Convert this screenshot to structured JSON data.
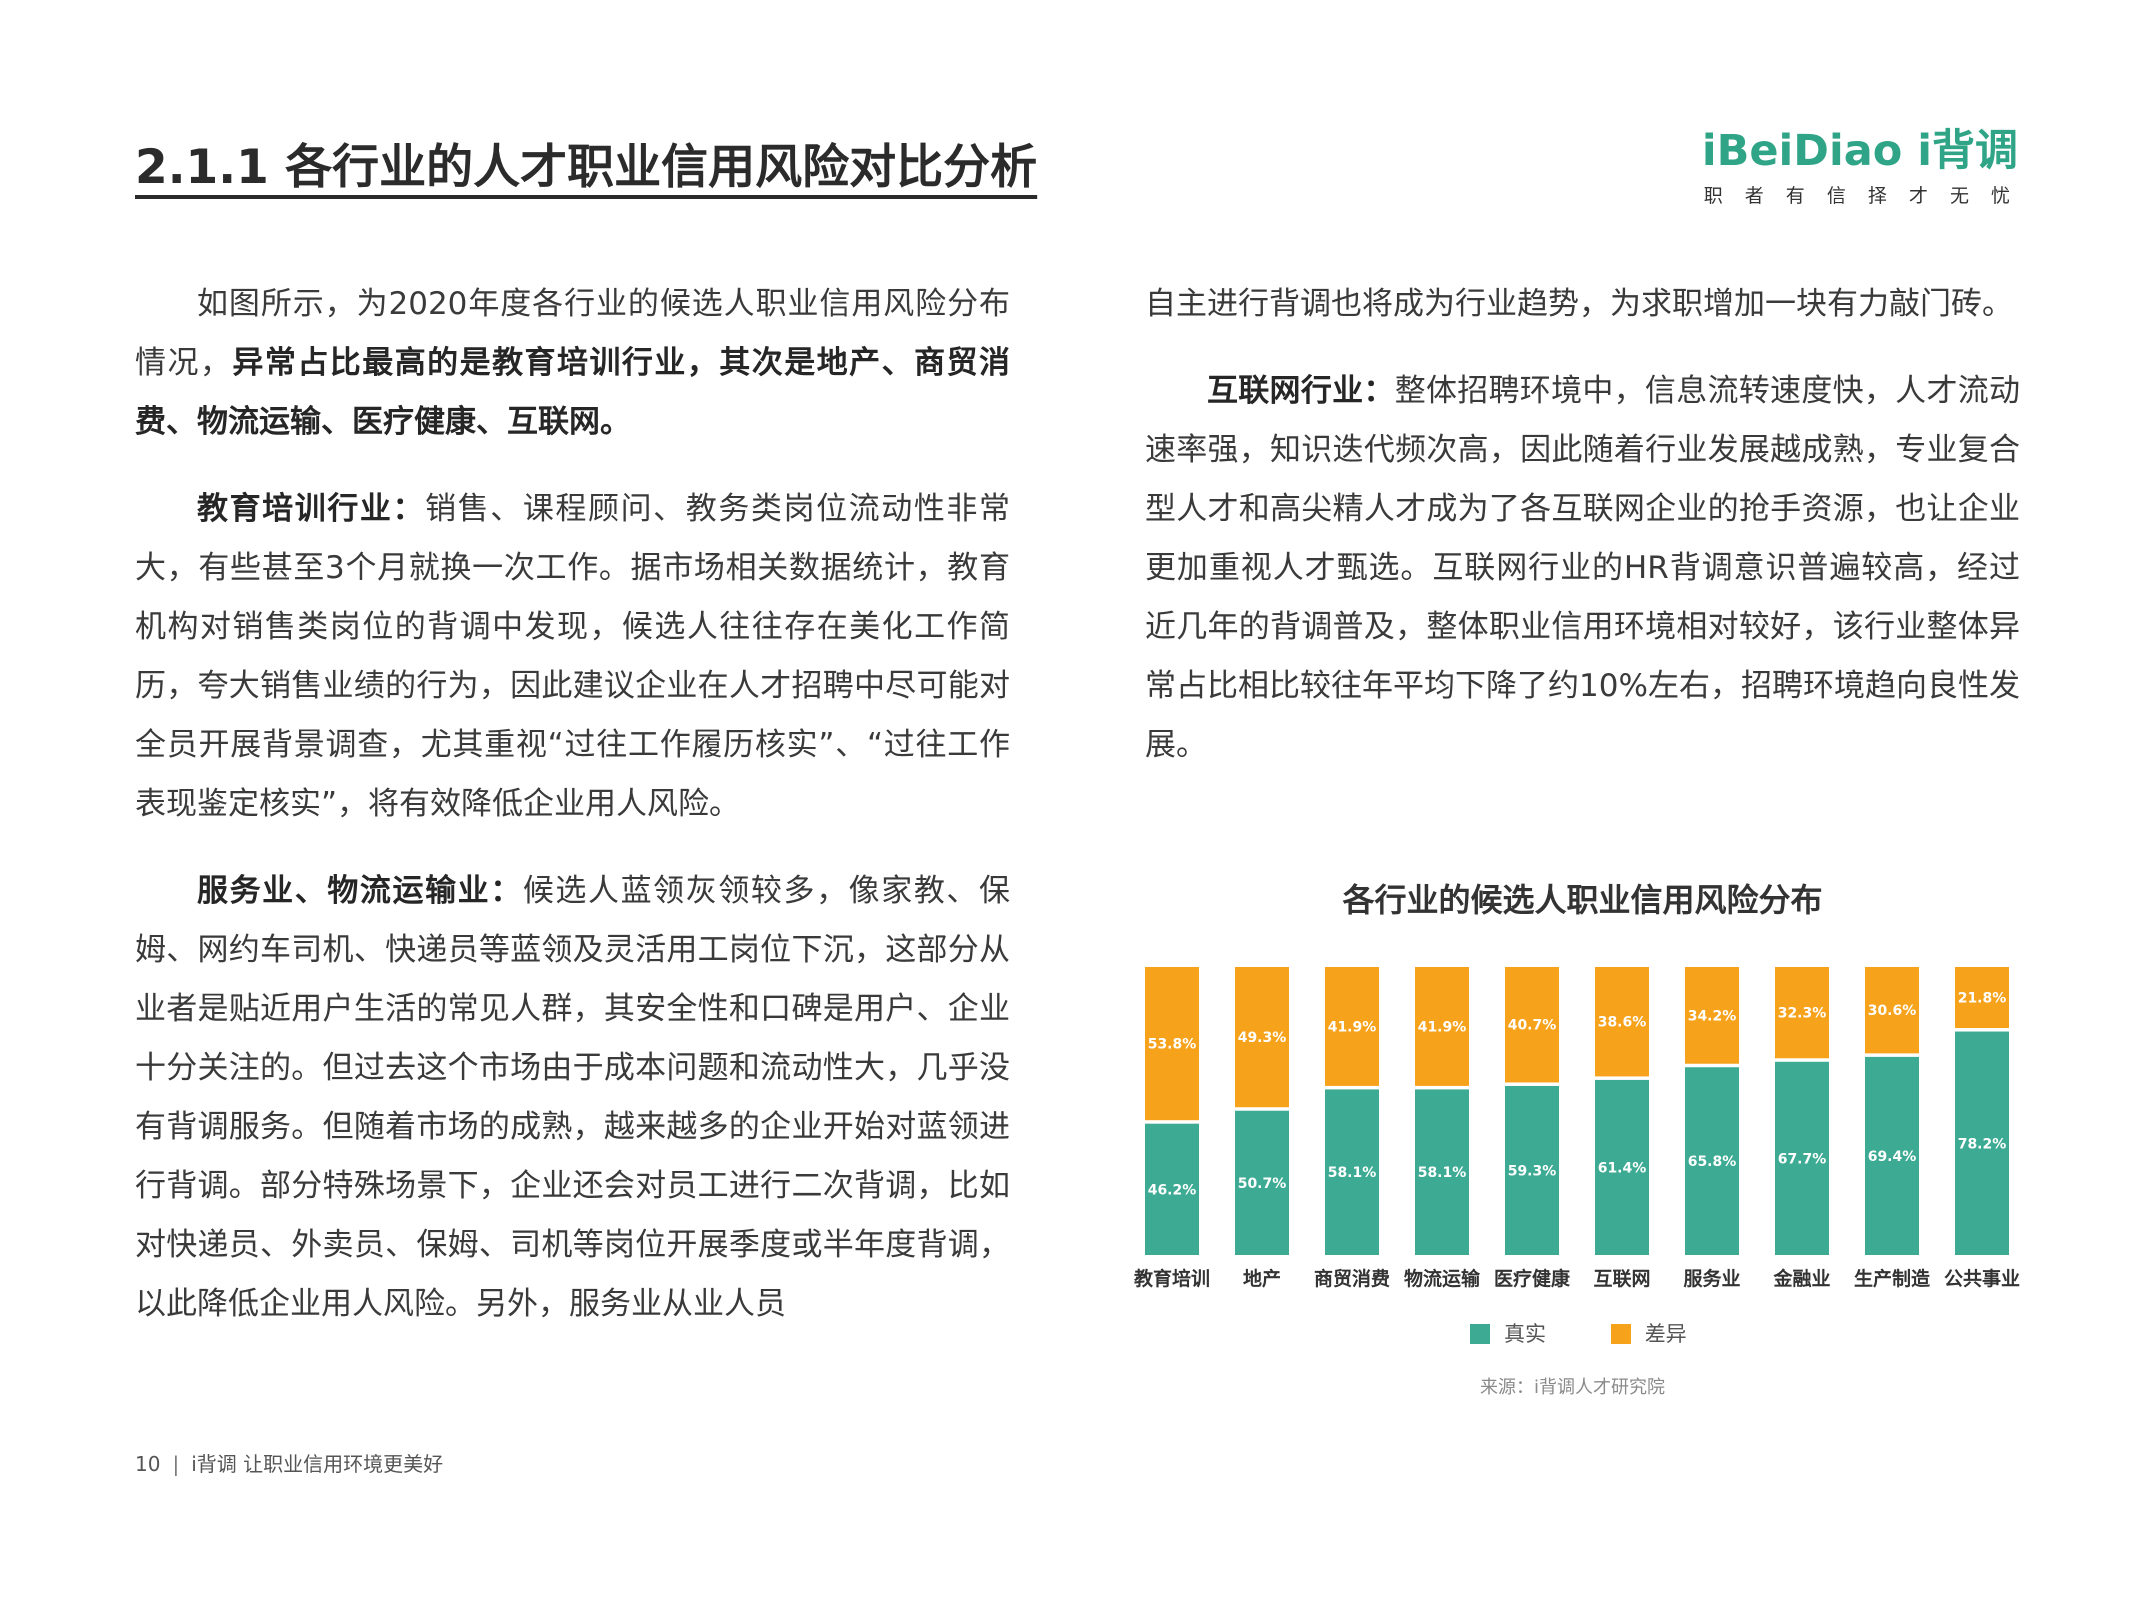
{
  "heading": "2.1.1 各行业的人才职业信用风险对比分析",
  "logo": {
    "brand": "iBeiDiao i背调",
    "tagline": "职 者 有 信  择 才 无 忧"
  },
  "left_column": {
    "p1_text": "如图所示，为2020年度各行业的候选人职业信用风险分布情况，",
    "p1_bold": "异常占比最高的是教育培训行业，其次是地产、商贸消费、物流运输、医疗健康、互联网。",
    "p2_bold": "教育培训行业：",
    "p2_text": "销售、课程顾问、教务类岗位流动性非常大，有些甚至3个月就换一次工作。据市场相关数据统计，教育机构对销售类岗位的背调中发现，候选人往往存在美化工作简历，夸大销售业绩的行为，因此建议企业在人才招聘中尽可能对全员开展背景调查，尤其重视“过往工作履历核实”、“过往工作表现鉴定核实”，将有效降低企业用人风险。",
    "p3_bold": "服务业、物流运输业：",
    "p3_text": "候选人蓝领灰领较多，像家教、保姆、网约车司机、快递员等蓝领及灵活用工岗位下沉，这部分从业者是贴近用户生活的常见人群，其安全性和口碑是用户、企业十分关注的。但过去这个市场由于成本问题和流动性大，几乎没有背调服务。但随着市场的成熟，越来越多的企业开始对蓝领进行背调。部分特殊场景下，企业还会对员工进行二次背调，比如对快递员、外卖员、保姆、司机等岗位开展季度或半年度背调，以此降低企业用人风险。另外，服务业从业人员"
  },
  "right_column": {
    "p0_text": "自主进行背调也将成为行业趋势，为求职增加一块有力敲门砖。",
    "p1_bold": "互联网行业：",
    "p1_text": "整体招聘环境中，信息流转速度快，人才流动速率强，知识迭代频次高，因此随着行业发展越成熟，专业复合型人才和高尖精人才成为了各互联网企业的抢手资源，也让企业更加重视人才甄选。互联网行业的HR背调意识普遍较高，经过近几年的背调普及，整体职业信用环境相对较好，该行业整体异常占比相比较往年平均下降了约10%左右，招聘环境趋向良性发展。"
  },
  "chart_data": {
    "type": "bar",
    "stacked": true,
    "title": "各行业的候选人职业信用风险分布",
    "categories": [
      "教育培训",
      "地产",
      "商贸消费",
      "物流运输",
      "医疗健康",
      "互联网",
      "服务业",
      "金融业",
      "生产制造",
      "公共事业"
    ],
    "series": [
      {
        "name": "真实",
        "color": "#3dab93",
        "values": [
          46.2,
          50.7,
          58.1,
          58.1,
          59.3,
          61.4,
          65.8,
          67.7,
          69.4,
          78.2
        ]
      },
      {
        "name": "差异",
        "color": "#f7a21b",
        "values": [
          53.8,
          49.3,
          41.9,
          41.9,
          40.7,
          38.6,
          34.2,
          32.3,
          30.6,
          21.8
        ]
      }
    ],
    "value_suffix": "%",
    "ylim": [
      0,
      100
    ],
    "legend_position": "bottom"
  },
  "legend": {
    "real_label": "真实",
    "diff_label": "差异",
    "real_color": "#3dab93",
    "diff_color": "#f7a21b"
  },
  "source": "来源：i背调人才研究院",
  "footer": {
    "page_number": "10",
    "sep": "|",
    "text": "i背调  让职业信用环境更美好"
  }
}
